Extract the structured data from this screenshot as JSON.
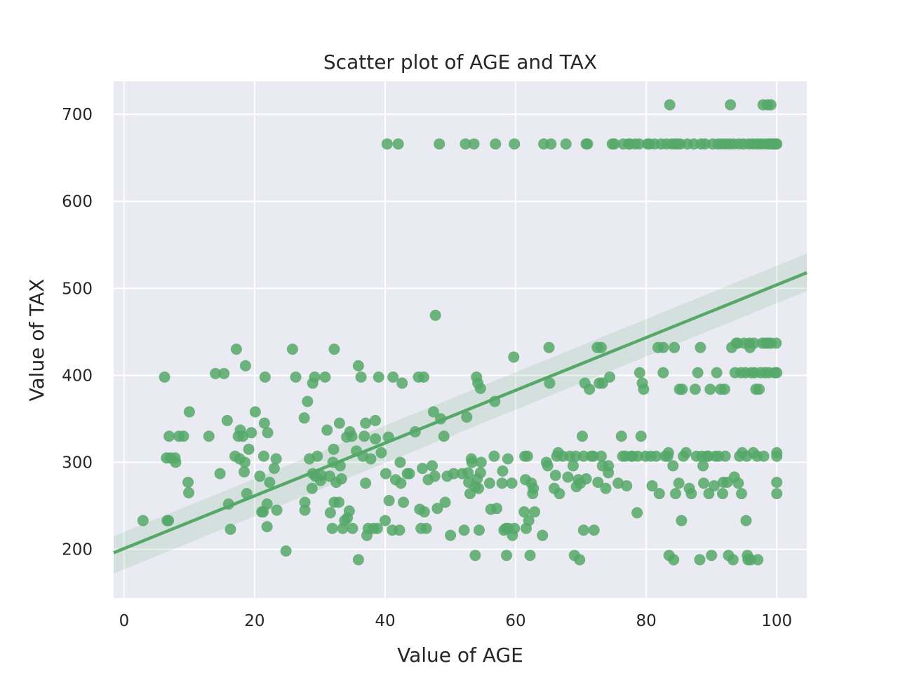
{
  "chart_data": {
    "type": "scatter",
    "title": "Scatter plot of AGE and TAX",
    "xlabel": "Value of AGE",
    "ylabel": "Value of TAX",
    "xlim": [
      -1.6,
      104.6
    ],
    "ylim": [
      144,
      738
    ],
    "x_ticks": [
      0,
      20,
      40,
      60,
      80,
      100
    ],
    "y_ticks": [
      200,
      300,
      400,
      500,
      600,
      700
    ],
    "grid": true,
    "colors": {
      "background": "#eaeaf2",
      "grid": "#ffffff",
      "point": "#55a868",
      "line": "#55a868",
      "band": "#55a868"
    },
    "regression": {
      "x": [
        -1.6,
        104.6
      ],
      "y": [
        196,
        518
      ],
      "ci_lower": [
        172,
        497
      ],
      "ci_upper": [
        215,
        540
      ]
    },
    "points": [
      [
        2.9,
        233
      ],
      [
        6.2,
        398
      ],
      [
        6.5,
        305
      ],
      [
        6.6,
        233
      ],
      [
        6.8,
        233
      ],
      [
        6.9,
        330
      ],
      [
        7.1,
        305
      ],
      [
        7.8,
        305
      ],
      [
        7.9,
        300
      ],
      [
        8.4,
        330
      ],
      [
        9.1,
        330
      ],
      [
        9.8,
        277
      ],
      [
        9.9,
        265
      ],
      [
        10.0,
        358
      ],
      [
        13.0,
        330
      ],
      [
        14.0,
        402
      ],
      [
        14.7,
        287
      ],
      [
        15.3,
        402
      ],
      [
        15.8,
        348
      ],
      [
        16.0,
        252
      ],
      [
        16.3,
        223
      ],
      [
        17.0,
        307
      ],
      [
        17.2,
        430
      ],
      [
        17.5,
        330
      ],
      [
        17.7,
        304
      ],
      [
        17.8,
        337
      ],
      [
        18.2,
        330
      ],
      [
        18.4,
        289
      ],
      [
        18.5,
        300
      ],
      [
        18.6,
        411
      ],
      [
        18.8,
        264
      ],
      [
        19.1,
        315
      ],
      [
        19.5,
        334
      ],
      [
        20.1,
        358
      ],
      [
        20.8,
        284
      ],
      [
        21.1,
        243
      ],
      [
        21.3,
        243
      ],
      [
        21.4,
        307
      ],
      [
        21.5,
        345
      ],
      [
        21.6,
        398
      ],
      [
        21.9,
        252
      ],
      [
        21.9,
        226
      ],
      [
        22.0,
        334
      ],
      [
        22.3,
        277
      ],
      [
        23.0,
        293
      ],
      [
        23.3,
        304
      ],
      [
        23.4,
        245
      ],
      [
        24.8,
        198
      ],
      [
        25.8,
        430
      ],
      [
        26.3,
        398
      ],
      [
        27.6,
        351
      ],
      [
        27.7,
        254
      ],
      [
        27.7,
        245
      ],
      [
        28.1,
        370
      ],
      [
        28.4,
        304
      ],
      [
        28.8,
        270
      ],
      [
        28.9,
        391
      ],
      [
        28.9,
        287
      ],
      [
        29.2,
        398
      ],
      [
        29.3,
        284
      ],
      [
        29.6,
        307
      ],
      [
        30.1,
        279
      ],
      [
        30.2,
        285
      ],
      [
        30.8,
        398
      ],
      [
        31.1,
        337
      ],
      [
        31.5,
        284
      ],
      [
        31.6,
        242
      ],
      [
        31.9,
        224
      ],
      [
        32.0,
        300
      ],
      [
        32.1,
        315
      ],
      [
        32.2,
        254
      ],
      [
        32.2,
        430
      ],
      [
        32.5,
        277
      ],
      [
        32.9,
        254
      ],
      [
        33.0,
        345
      ],
      [
        33.1,
        296
      ],
      [
        33.3,
        281
      ],
      [
        33.5,
        224
      ],
      [
        33.8,
        233
      ],
      [
        34.1,
        329
      ],
      [
        34.2,
        236
      ],
      [
        34.5,
        244
      ],
      [
        34.6,
        335
      ],
      [
        34.9,
        330
      ],
      [
        35.0,
        224
      ],
      [
        35.6,
        313
      ],
      [
        35.9,
        188
      ],
      [
        35.9,
        411
      ],
      [
        36.3,
        398
      ],
      [
        36.6,
        307
      ],
      [
        36.8,
        330
      ],
      [
        37.0,
        345
      ],
      [
        37.0,
        276
      ],
      [
        37.2,
        216
      ],
      [
        37.4,
        224
      ],
      [
        37.8,
        304
      ],
      [
        38.2,
        224
      ],
      [
        38.5,
        348
      ],
      [
        38.5,
        327
      ],
      [
        38.8,
        224
      ],
      [
        39.0,
        398
      ],
      [
        39.4,
        311
      ],
      [
        40.0,
        233
      ],
      [
        40.1,
        287
      ],
      [
        40.3,
        666
      ],
      [
        40.5,
        329
      ],
      [
        40.6,
        256
      ],
      [
        41.1,
        222
      ],
      [
        41.2,
        398
      ],
      [
        41.6,
        280
      ],
      [
        42.0,
        666
      ],
      [
        42.2,
        222
      ],
      [
        42.3,
        300
      ],
      [
        42.4,
        276
      ],
      [
        42.6,
        391
      ],
      [
        42.8,
        254
      ],
      [
        43.4,
        287
      ],
      [
        43.7,
        287
      ],
      [
        44.6,
        335
      ],
      [
        45.1,
        398
      ],
      [
        45.3,
        246
      ],
      [
        45.5,
        224
      ],
      [
        45.7,
        293
      ],
      [
        45.9,
        398
      ],
      [
        46.0,
        243
      ],
      [
        46.3,
        224
      ],
      [
        46.6,
        280
      ],
      [
        47.2,
        296
      ],
      [
        47.4,
        358
      ],
      [
        47.6,
        284
      ],
      [
        47.7,
        469
      ],
      [
        48.0,
        247
      ],
      [
        48.3,
        666
      ],
      [
        48.5,
        350
      ],
      [
        49.0,
        330
      ],
      [
        49.2,
        254
      ],
      [
        49.5,
        284
      ],
      [
        50.0,
        216
      ],
      [
        50.5,
        287
      ],
      [
        51.8,
        287
      ],
      [
        52.1,
        222
      ],
      [
        52.3,
        666
      ],
      [
        52.5,
        352
      ],
      [
        52.7,
        288
      ],
      [
        52.8,
        277
      ],
      [
        53.0,
        264
      ],
      [
        53.2,
        304
      ],
      [
        53.3,
        300
      ],
      [
        53.6,
        666
      ],
      [
        53.8,
        272
      ],
      [
        53.8,
        193
      ],
      [
        54.0,
        398
      ],
      [
        54.1,
        281
      ],
      [
        54.2,
        391
      ],
      [
        54.3,
        270
      ],
      [
        54.4,
        222
      ],
      [
        54.6,
        385
      ],
      [
        54.7,
        300
      ],
      [
        54.6,
        288
      ],
      [
        56.0,
        276
      ],
      [
        56.2,
        246
      ],
      [
        56.7,
        307
      ],
      [
        56.8,
        370
      ],
      [
        56.9,
        666
      ],
      [
        57.1,
        247
      ],
      [
        57.9,
        276
      ],
      [
        58.0,
        290
      ],
      [
        58.2,
        222
      ],
      [
        58.5,
        224
      ],
      [
        58.6,
        193
      ],
      [
        58.8,
        304
      ],
      [
        58.9,
        224
      ],
      [
        59.4,
        276
      ],
      [
        59.5,
        216
      ],
      [
        59.7,
        421
      ],
      [
        59.8,
        666
      ],
      [
        59.8,
        224
      ],
      [
        61.3,
        243
      ],
      [
        61.4,
        307
      ],
      [
        61.5,
        280
      ],
      [
        61.6,
        224
      ],
      [
        61.8,
        307
      ],
      [
        62.0,
        233
      ],
      [
        62.2,
        193
      ],
      [
        62.4,
        276
      ],
      [
        62.6,
        264
      ],
      [
        62.7,
        270
      ],
      [
        62.9,
        243
      ],
      [
        64.1,
        216
      ],
      [
        64.3,
        666
      ],
      [
        64.7,
        300
      ],
      [
        64.9,
        296
      ],
      [
        65.1,
        432
      ],
      [
        65.2,
        391
      ],
      [
        65.4,
        666
      ],
      [
        65.9,
        270
      ],
      [
        66.1,
        285
      ],
      [
        66.3,
        307
      ],
      [
        66.5,
        311
      ],
      [
        66.7,
        264
      ],
      [
        67.2,
        307
      ],
      [
        67.7,
        666
      ],
      [
        68.0,
        283
      ],
      [
        68.3,
        307
      ],
      [
        68.8,
        296
      ],
      [
        69.0,
        193
      ],
      [
        69.2,
        307
      ],
      [
        69.3,
        272
      ],
      [
        69.6,
        280
      ],
      [
        69.8,
        188
      ],
      [
        69.9,
        276
      ],
      [
        70.2,
        330
      ],
      [
        70.4,
        307
      ],
      [
        70.4,
        222
      ],
      [
        70.6,
        391
      ],
      [
        70.8,
        281
      ],
      [
        70.8,
        666
      ],
      [
        71.0,
        666
      ],
      [
        71.3,
        384
      ],
      [
        71.6,
        307
      ],
      [
        71.9,
        307
      ],
      [
        72.0,
        222
      ],
      [
        72.5,
        432
      ],
      [
        72.6,
        277
      ],
      [
        72.8,
        391
      ],
      [
        73.1,
        432
      ],
      [
        73.1,
        307
      ],
      [
        73.3,
        391
      ],
      [
        73.3,
        296
      ],
      [
        73.8,
        270
      ],
      [
        74.2,
        296
      ],
      [
        74.2,
        288
      ],
      [
        74.4,
        398
      ],
      [
        74.8,
        666
      ],
      [
        75.1,
        666
      ],
      [
        75.7,
        276
      ],
      [
        76.2,
        330
      ],
      [
        76.4,
        307
      ],
      [
        76.5,
        666
      ],
      [
        76.8,
        307
      ],
      [
        77.0,
        273
      ],
      [
        77.3,
        666
      ],
      [
        77.5,
        666
      ],
      [
        77.7,
        307
      ],
      [
        77.9,
        307
      ],
      [
        78.3,
        666
      ],
      [
        78.6,
        242
      ],
      [
        78.7,
        307
      ],
      [
        78.9,
        666
      ],
      [
        79.0,
        403
      ],
      [
        79.2,
        330
      ],
      [
        79.4,
        391
      ],
      [
        79.6,
        384
      ],
      [
        79.9,
        307
      ],
      [
        80.2,
        666
      ],
      [
        80.5,
        666
      ],
      [
        80.7,
        307
      ],
      [
        80.9,
        273
      ],
      [
        81.3,
        666
      ],
      [
        81.5,
        307
      ],
      [
        81.8,
        432
      ],
      [
        82.0,
        264
      ],
      [
        82.3,
        666
      ],
      [
        82.6,
        432
      ],
      [
        82.6,
        403
      ],
      [
        82.9,
        307
      ],
      [
        83.1,
        666
      ],
      [
        83.3,
        307
      ],
      [
        83.4,
        311
      ],
      [
        83.5,
        193
      ],
      [
        83.6,
        711
      ],
      [
        83.9,
        666
      ],
      [
        84.1,
        296
      ],
      [
        84.2,
        188
      ],
      [
        84.3,
        432
      ],
      [
        84.4,
        666
      ],
      [
        84.5,
        264
      ],
      [
        84.8,
        666
      ],
      [
        85.0,
        276
      ],
      [
        85.1,
        384
      ],
      [
        85.2,
        666
      ],
      [
        85.4,
        233
      ],
      [
        85.5,
        384
      ],
      [
        85.7,
        307
      ],
      [
        86.1,
        311
      ],
      [
        86.3,
        666
      ],
      [
        86.6,
        270
      ],
      [
        86.9,
        264
      ],
      [
        87.3,
        666
      ],
      [
        87.5,
        384
      ],
      [
        87.7,
        307
      ],
      [
        87.9,
        403
      ],
      [
        88.2,
        188
      ],
      [
        88.3,
        432
      ],
      [
        88.4,
        666
      ],
      [
        88.5,
        307
      ],
      [
        88.7,
        296
      ],
      [
        88.8,
        276
      ],
      [
        89.0,
        666
      ],
      [
        89.3,
        307
      ],
      [
        89.5,
        307
      ],
      [
        89.6,
        264
      ],
      [
        89.8,
        384
      ],
      [
        90.0,
        193
      ],
      [
        90.2,
        666
      ],
      [
        90.4,
        273
      ],
      [
        90.6,
        307
      ],
      [
        90.8,
        403
      ],
      [
        91.0,
        666
      ],
      [
        91.1,
        307
      ],
      [
        91.4,
        384
      ],
      [
        91.6,
        666
      ],
      [
        91.7,
        264
      ],
      [
        91.8,
        277
      ],
      [
        92.0,
        384
      ],
      [
        92.1,
        307
      ],
      [
        92.2,
        666
      ],
      [
        92.4,
        277
      ],
      [
        92.6,
        193
      ],
      [
        92.8,
        666
      ],
      [
        92.9,
        711
      ],
      [
        93.1,
        432
      ],
      [
        93.3,
        188
      ],
      [
        93.4,
        666
      ],
      [
        93.5,
        283
      ],
      [
        93.6,
        403
      ],
      [
        93.8,
        437
      ],
      [
        94.0,
        437
      ],
      [
        94.1,
        276
      ],
      [
        94.2,
        666
      ],
      [
        94.3,
        307
      ],
      [
        94.5,
        403
      ],
      [
        94.6,
        264
      ],
      [
        94.7,
        311
      ],
      [
        94.9,
        666
      ],
      [
        95.0,
        437
      ],
      [
        95.2,
        403
      ],
      [
        95.3,
        233
      ],
      [
        95.4,
        307
      ],
      [
        95.5,
        193
      ],
      [
        95.6,
        188
      ],
      [
        95.7,
        666
      ],
      [
        95.8,
        437
      ],
      [
        95.9,
        432
      ],
      [
        96.0,
        188
      ],
      [
        96.1,
        403
      ],
      [
        96.3,
        666
      ],
      [
        96.4,
        311
      ],
      [
        96.5,
        437
      ],
      [
        96.6,
        403
      ],
      [
        96.8,
        384
      ],
      [
        96.9,
        666
      ],
      [
        97.0,
        307
      ],
      [
        97.1,
        188
      ],
      [
        97.3,
        384
      ],
      [
        97.4,
        666
      ],
      [
        97.5,
        403
      ],
      [
        97.8,
        437
      ],
      [
        97.9,
        666
      ],
      [
        97.9,
        711
      ],
      [
        98.0,
        307
      ],
      [
        98.2,
        403
      ],
      [
        98.3,
        437
      ],
      [
        98.5,
        666
      ],
      [
        98.6,
        711
      ],
      [
        98.7,
        437
      ],
      [
        98.8,
        403
      ],
      [
        98.9,
        666
      ],
      [
        99.1,
        711
      ],
      [
        99.1,
        437
      ],
      [
        99.3,
        666
      ],
      [
        99.5,
        666
      ],
      [
        99.7,
        403
      ],
      [
        99.8,
        666
      ],
      [
        99.9,
        437
      ],
      [
        100.0,
        666
      ],
      [
        100.0,
        403
      ],
      [
        100.0,
        311
      ],
      [
        100.0,
        307
      ],
      [
        100.0,
        277
      ],
      [
        100.0,
        264
      ]
    ]
  }
}
